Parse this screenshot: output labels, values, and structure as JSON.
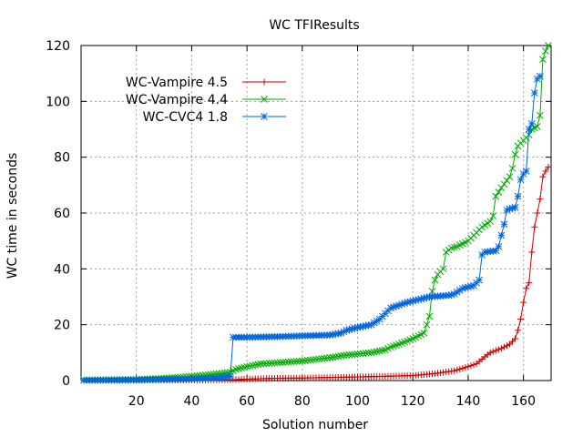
{
  "chart_data": {
    "type": "line",
    "title": "WC TFIResults",
    "xlabel": "Solution number",
    "ylabel": "WC time in seconds",
    "xlim": [
      0,
      170
    ],
    "ylim": [
      0,
      120
    ],
    "xticks": [
      20,
      40,
      60,
      80,
      100,
      120,
      140,
      160
    ],
    "yticks": [
      0,
      20,
      40,
      60,
      80,
      100,
      120
    ],
    "grid": true,
    "legend_position": "top-left",
    "series": [
      {
        "name": "WC-Vampire 4.5",
        "color": "#cc0000",
        "marker": "plus",
        "points": [
          [
            1,
            0.1
          ],
          [
            20,
            0.1
          ],
          [
            40,
            0.2
          ],
          [
            55,
            0.3
          ],
          [
            60,
            0.5
          ],
          [
            70,
            0.8
          ],
          [
            80,
            0.9
          ],
          [
            90,
            1.1
          ],
          [
            100,
            1.3
          ],
          [
            110,
            1.5
          ],
          [
            120,
            1.8
          ],
          [
            128,
            2.5
          ],
          [
            135,
            3.5
          ],
          [
            140,
            5
          ],
          [
            143,
            6
          ],
          [
            146,
            8.5
          ],
          [
            148,
            10
          ],
          [
            152,
            11.5
          ],
          [
            155,
            13
          ],
          [
            157,
            15
          ],
          [
            158,
            18
          ],
          [
            159,
            22
          ],
          [
            160,
            28
          ],
          [
            161,
            33
          ],
          [
            162,
            35
          ],
          [
            163,
            46
          ],
          [
            164,
            55
          ],
          [
            165,
            60
          ],
          [
            166,
            65
          ],
          [
            167,
            73
          ],
          [
            168,
            75
          ],
          [
            169,
            76.5
          ]
        ]
      },
      {
        "name": "WC-Vampire 4.4",
        "color": "#00aa00",
        "marker": "cross",
        "points": [
          [
            1,
            0.2
          ],
          [
            20,
            0.4
          ],
          [
            30,
            0.8
          ],
          [
            40,
            1.5
          ],
          [
            50,
            2.5
          ],
          [
            54,
            3
          ],
          [
            56,
            4
          ],
          [
            60,
            5
          ],
          [
            65,
            6
          ],
          [
            70,
            6.3
          ],
          [
            80,
            7
          ],
          [
            90,
            8.2
          ],
          [
            95,
            9
          ],
          [
            100,
            9.5
          ],
          [
            105,
            10
          ],
          [
            110,
            11
          ],
          [
            112,
            12
          ],
          [
            115,
            13
          ],
          [
            120,
            15
          ],
          [
            124,
            17
          ],
          [
            125,
            20
          ],
          [
            126,
            23
          ],
          [
            127,
            32
          ],
          [
            128,
            36
          ],
          [
            129,
            38
          ],
          [
            131,
            40
          ],
          [
            132,
            46
          ],
          [
            134,
            47.5
          ],
          [
            136,
            48
          ],
          [
            140,
            50
          ],
          [
            142,
            52
          ],
          [
            145,
            55
          ],
          [
            148,
            57
          ],
          [
            149,
            59
          ],
          [
            150,
            66
          ],
          [
            152,
            69
          ],
          [
            155,
            73
          ],
          [
            156,
            76
          ],
          [
            157,
            81
          ],
          [
            158,
            84
          ],
          [
            160,
            86
          ],
          [
            162,
            88
          ],
          [
            163,
            90
          ],
          [
            165,
            91
          ],
          [
            166,
            95
          ],
          [
            167,
            115
          ],
          [
            168,
            118
          ],
          [
            169,
            120
          ]
        ]
      },
      {
        "name": "WC-CVC4 1.8",
        "color": "#0066dd",
        "marker": "star",
        "points": [
          [
            1,
            0.1
          ],
          [
            20,
            0.2
          ],
          [
            40,
            0.5
          ],
          [
            50,
            1
          ],
          [
            54,
            1.5
          ],
          [
            55,
            15.5
          ],
          [
            60,
            15.5
          ],
          [
            70,
            15.7
          ],
          [
            80,
            16
          ],
          [
            90,
            16.3
          ],
          [
            94,
            17
          ],
          [
            96,
            18
          ],
          [
            100,
            19
          ],
          [
            105,
            20
          ],
          [
            108,
            22
          ],
          [
            110,
            24
          ],
          [
            112,
            26
          ],
          [
            118,
            28
          ],
          [
            122,
            29
          ],
          [
            126,
            30
          ],
          [
            133,
            30.5
          ],
          [
            135,
            31
          ],
          [
            138,
            33
          ],
          [
            142,
            34
          ],
          [
            144,
            36
          ],
          [
            145,
            45
          ],
          [
            146,
            46
          ],
          [
            150,
            46.5
          ],
          [
            151,
            48
          ],
          [
            152,
            52
          ],
          [
            153,
            56
          ],
          [
            154,
            61
          ],
          [
            155,
            61.5
          ],
          [
            157,
            62
          ],
          [
            158,
            66
          ],
          [
            159,
            72
          ],
          [
            160,
            74
          ],
          [
            161,
            75
          ],
          [
            162,
            90
          ],
          [
            163,
            92
          ],
          [
            164,
            103
          ],
          [
            165,
            108
          ],
          [
            166,
            109
          ]
        ]
      }
    ]
  }
}
